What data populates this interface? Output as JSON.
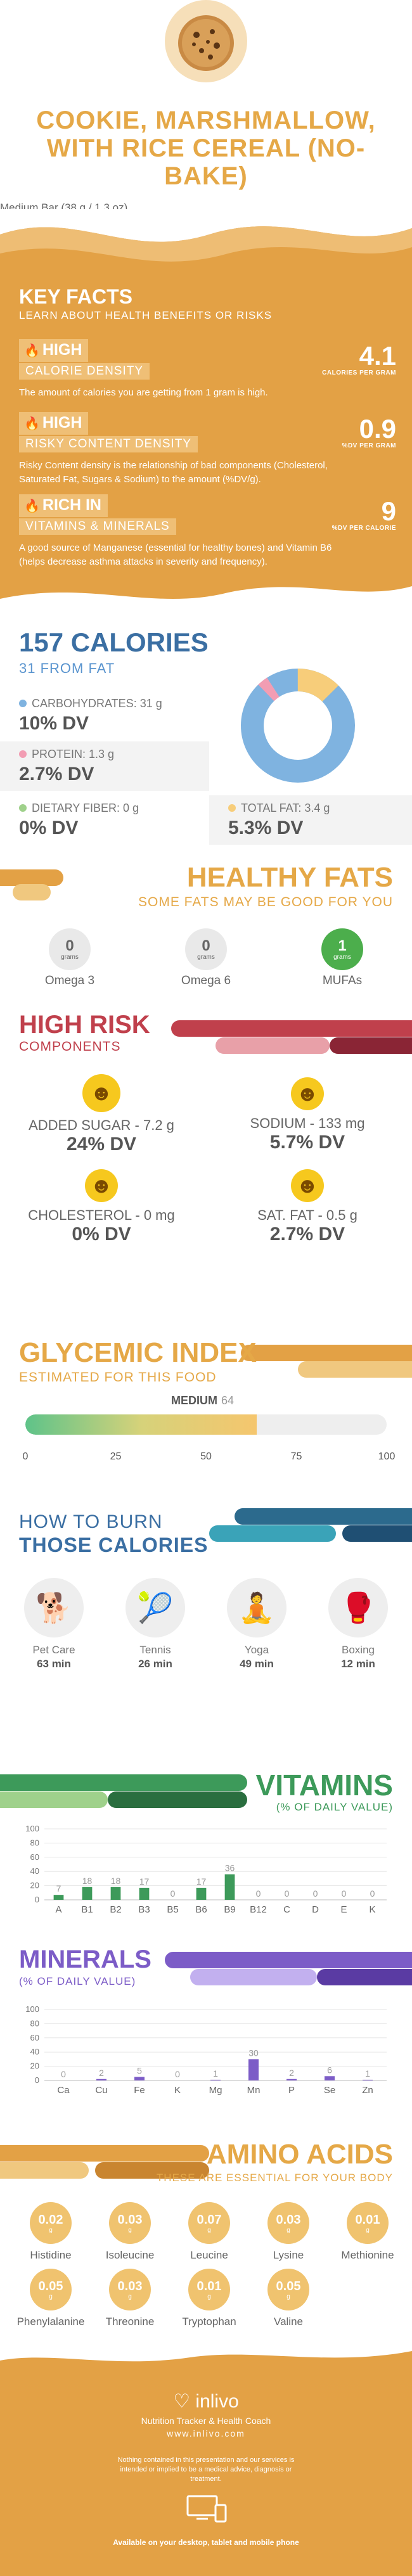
{
  "header": {
    "title": "COOKIE, MARSHMALLOW, WITH RICE CEREAL (NO-BAKE)",
    "serving": "Medium Bar (38 g / 1.3 oz)"
  },
  "key_facts": {
    "title": "KEY FACTS",
    "subtitle": "LEARN ABOUT HEALTH BENEFITS OR RISKS",
    "facts": [
      {
        "badge": "HIGH",
        "label": "CALORIE DENSITY",
        "desc": "The amount of calories you are getting from 1 gram is high.",
        "value": "4.1",
        "unit": "CALORIES PER GRAM",
        "icon": "flame-icon"
      },
      {
        "badge": "HIGH",
        "label": "RISKY CONTENT DENSITY",
        "desc": "Risky Content density is the relationship of bad components (Cholesterol, Saturated Fat, Sugars & Sodium) to the amount (%DV/g).",
        "value": "0.9",
        "unit": "%DV PER GRAM",
        "icon": "flame-icon"
      },
      {
        "badge": "RICH IN",
        "label": "VITAMINS & MINERALS",
        "desc": "A good source of Manganese (essential for healthy bones) and Vitamin B6 (helps decrease asthma attacks in severity and frequency).",
        "value": "9",
        "unit": "%DV PER CALORIE",
        "icon": "flame-icon"
      }
    ]
  },
  "calories": {
    "title": "157 CALORIES",
    "subtitle": "31 FROM FAT",
    "macros": [
      {
        "label": "CARBOHYDRATES: 31 g",
        "dv": "10% DV",
        "color": "#7fb3e0"
      },
      {
        "label": "PROTEIN: 1.3 g",
        "dv": "2.7% DV",
        "color": "#f29db3"
      },
      {
        "label": "DIETARY FIBER: 0 g",
        "dv": "0% DV",
        "color": "#9fd18b"
      },
      {
        "label": "TOTAL FAT: 3.4 g",
        "dv": "5.3% DV",
        "color": "#f7cd7a"
      }
    ]
  },
  "healthy_fats": {
    "title": "HEALTHY FATS",
    "subtitle": "SOME FATS MAY BE GOOD FOR YOU",
    "items": [
      {
        "value": "0",
        "unit": "grams",
        "name": "Omega 3"
      },
      {
        "value": "0",
        "unit": "grams",
        "name": "Omega 6"
      },
      {
        "value": "1",
        "unit": "grams",
        "name": "MUFAs"
      }
    ]
  },
  "high_risk": {
    "title": "HIGH RISK",
    "subtitle": "COMPONENTS",
    "items": [
      {
        "label": "ADDED SUGAR - 7.2 g",
        "dv": "24% DV"
      },
      {
        "label": "SODIUM - 133 mg",
        "dv": "5.7% DV"
      },
      {
        "label": "CHOLESTEROL - 0 mg",
        "dv": "0% DV"
      },
      {
        "label": "SAT. FAT - 0.5 g",
        "dv": "2.7% DV"
      }
    ]
  },
  "glycemic": {
    "title": "GLYCEMIC INDEX",
    "subtitle": "ESTIMATED FOR THIS FOOD",
    "level": "MEDIUM",
    "value": 64,
    "value_text": "64",
    "ticks": [
      "0",
      "25",
      "50",
      "75",
      "100"
    ]
  },
  "burn": {
    "title_line1": "HOW TO BURN",
    "title_line2": "THOSE CALORIES",
    "activities": [
      {
        "name": "Pet Care",
        "minutes": "63 min",
        "icon": "pet-care-icon"
      },
      {
        "name": "Tennis",
        "minutes": "26 min",
        "icon": "tennis-icon"
      },
      {
        "name": "Yoga",
        "minutes": "49 min",
        "icon": "yoga-icon"
      },
      {
        "name": "Boxing",
        "minutes": "12 min",
        "icon": "boxing-icon"
      }
    ]
  },
  "vitamins_section": {
    "title": "VITAMINS",
    "subtitle": "(% OF DAILY VALUE)"
  },
  "minerals_section": {
    "title": "MINERALS",
    "subtitle": "(% OF DAILY VALUE)"
  },
  "chart_data": [
    {
      "type": "bar",
      "title": "VITAMINS",
      "subtitle": "(% OF DAILY VALUE)",
      "categories": [
        "A",
        "B1",
        "B2",
        "B3",
        "B5",
        "B6",
        "B9",
        "B12",
        "C",
        "D",
        "E",
        "K"
      ],
      "values": [
        7,
        18,
        18,
        17,
        0,
        17,
        36,
        0,
        0,
        0,
        0,
        0
      ],
      "ylim": [
        0,
        100
      ],
      "yticks": [
        0,
        20,
        40,
        60,
        80,
        100
      ],
      "color": "#3d9a5a",
      "grid": true
    },
    {
      "type": "bar",
      "title": "MINERALS",
      "subtitle": "(% OF DAILY VALUE)",
      "categories": [
        "Ca",
        "Cu",
        "Fe",
        "K",
        "Mg",
        "Mn",
        "P",
        "Se",
        "Zn"
      ],
      "values": [
        0,
        2,
        5,
        0,
        1,
        30,
        2,
        6,
        1
      ],
      "ylim": [
        0,
        100
      ],
      "yticks": [
        0,
        20,
        40,
        60,
        80,
        100
      ],
      "color": "#7c5cc7",
      "grid": true
    }
  ],
  "amino_acids": {
    "title": "AMINO ACIDS",
    "subtitle": "THESE ARE ESSENTIAL FOR YOUR BODY",
    "unit": "g",
    "items": [
      {
        "value": "0.02",
        "name": "Histidine"
      },
      {
        "value": "0.03",
        "name": "Isoleucine"
      },
      {
        "value": "0.07",
        "name": "Leucine"
      },
      {
        "value": "0.03",
        "name": "Lysine"
      },
      {
        "value": "0.01",
        "name": "Methionine"
      },
      {
        "value": "0.05",
        "name": "Phenylalanine"
      },
      {
        "value": "0.03",
        "name": "Threonine"
      },
      {
        "value": "0.01",
        "name": "Tryptophan"
      },
      {
        "value": "0.05",
        "name": "Valine"
      }
    ]
  },
  "footer": {
    "brand": "inlivo",
    "tagline": "Nutrition Tracker & Health Coach",
    "url": "www.inlivo.com",
    "disclaimer": "Nothing contained in this presentation and our services is intended or implied to be a medical advice, diagnosis or treatment.",
    "availability": "Available on your desktop, tablet and mobile phone"
  },
  "colors": {
    "orange": "#e3a145",
    "gold": "#e5a847",
    "blue": "#3b6fa3",
    "red": "#c0404c",
    "green": "#3d9a5a",
    "purple": "#7c5cc7"
  }
}
